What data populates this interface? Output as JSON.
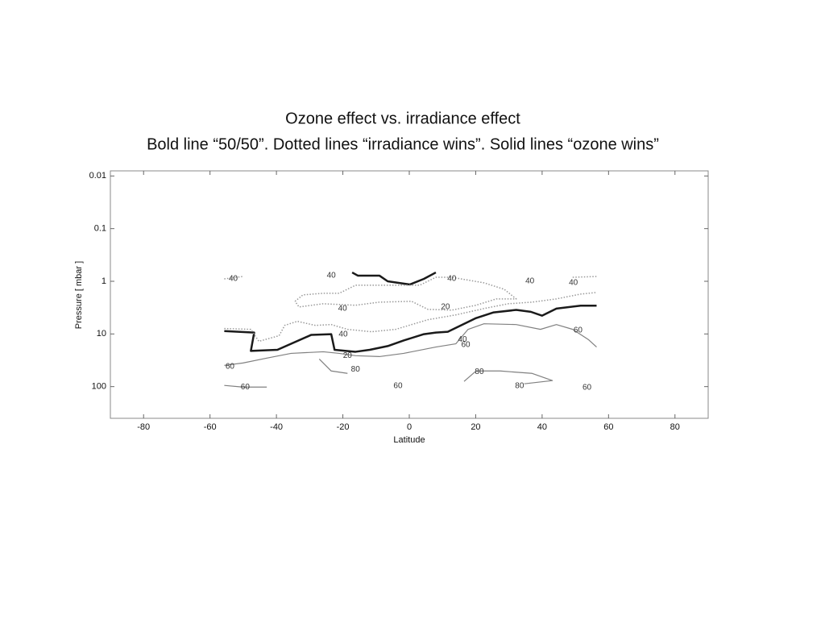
{
  "chart_data": {
    "type": "contour",
    "title": "Ozone effect vs. irradiance effect",
    "subtitle": "Bold line “50/50”.  Dotted lines “irradiance wins”.  Solid lines “ozone wins”",
    "x_label": "Latitude",
    "y_label": "Pressure [ mbar ]",
    "xlim": [
      -90,
      90
    ],
    "xticks": [
      -80,
      -60,
      -40,
      -20,
      0,
      20,
      40,
      60,
      80
    ],
    "ylim": [
      0.008,
      400
    ],
    "yticks": [
      0.01,
      0.1,
      1,
      10,
      100
    ],
    "log_y": true,
    "y_inverted": true,
    "series": [
      {
        "style": "bold",
        "color": "#1a1a1a",
        "x": [
          -55.7,
          -46.7,
          -47.7,
          -39.7,
          -29.5,
          -23.5,
          -22.5,
          -16.2,
          -11.9,
          -6.5,
          -1.7,
          4.4,
          8.0,
          11.6,
          20.1,
          25.4,
          32.2,
          36.6,
          40.0,
          44.3,
          51.6,
          56.4
        ],
        "y": [
          8.8,
          9.4,
          21,
          20,
          10.4,
          10.1,
          20,
          21.8,
          20,
          17,
          13.3,
          10.1,
          9.4,
          9.1,
          5.0,
          3.9,
          3.5,
          3.8,
          4.5,
          3.3,
          2.9,
          2.9
        ]
      },
      {
        "style": "bold",
        "color": "#1a1a1a",
        "x": [
          -17.2,
          -15.5,
          -9.0,
          -6.5,
          0.2,
          4.4,
          8.0
        ],
        "y": [
          0.68,
          0.78,
          0.78,
          1,
          1.15,
          0.9,
          0.68
        ]
      },
      {
        "style": "dotted",
        "color": "#999999",
        "x": [
          -55.7,
          -47.7,
          -45.3,
          -39.2,
          -37.5,
          -33.7,
          -28.3,
          -23.5,
          -18.6,
          -11.4,
          -4.1,
          5.6,
          14.0,
          22.5,
          29.8,
          37.0,
          44.3,
          51.6,
          56.4
        ],
        "y": [
          7.89,
          8.18,
          13.8,
          10.8,
          6.87,
          5.76,
          6.87,
          6.63,
          8.18,
          9.08,
          8.18,
          5.37,
          4.35,
          3.29,
          2.67,
          2.49,
          2.16,
          1.75,
          1.63
        ]
      },
      {
        "style": "dotted",
        "color": "#999999",
        "x": [
          -34.4,
          -32.0,
          -25.9,
          -21.1,
          -16.2,
          -6.5,
          3.1,
          8.0,
          12.8,
          22.5,
          28.6,
          32.2,
          26.2,
          20.1,
          12.8,
          5.6,
          0.7,
          -9.0,
          -16.2,
          -25.9,
          -33.2,
          -34.4
        ],
        "y": [
          2.4,
          1.81,
          1.69,
          1.69,
          1.19,
          1.19,
          1.19,
          0.84,
          0.84,
          1.07,
          1.42,
          2.16,
          2.16,
          2.85,
          3.53,
          3.41,
          2.4,
          2.49,
          2.85,
          2.67,
          3.07,
          2.4
        ]
      },
      {
        "style": "dotted",
        "color": "#999999",
        "x": [
          -55.7,
          -50.1
        ],
        "y": [
          0.9,
          0.81
        ]
      },
      {
        "style": "dotted",
        "color": "#999999",
        "x": [
          49.2,
          56.4
        ],
        "y": [
          0.84,
          0.81
        ]
      },
      {
        "style": "solid",
        "color": "#808080",
        "x": [
          -55.7,
          -50.1,
          -42.9,
          -35.6,
          -25.9,
          -21.1,
          -16.2,
          -9.0,
          -1.7,
          8.0,
          14.0,
          17.7,
          22.5,
          32.2,
          39.5,
          44.3,
          49.2,
          54.0,
          56.4
        ],
        "y": [
          39.5,
          35.6,
          28.8,
          23.4,
          21.8,
          23.4,
          25.9,
          26.9,
          23.4,
          17.7,
          15.4,
          8.18,
          6.4,
          6.63,
          8.18,
          6.63,
          8.18,
          12.9,
          17.7
        ]
      },
      {
        "style": "solid",
        "color": "#808080",
        "x": [
          -27.1,
          -23.5,
          -18.6
        ],
        "y": [
          29.9,
          50.5,
          56.1
        ]
      },
      {
        "style": "solid",
        "color": "#808080",
        "x": [
          16.5,
          20.1,
          27.4,
          37.0,
          43.1,
          34.6
        ],
        "y": [
          79.6,
          50.5,
          50.5,
          56.1,
          76.9,
          88.5
        ]
      },
      {
        "style": "solid",
        "color": "#808080",
        "x": [
          -55.7,
          -50.1,
          -42.9
        ],
        "y": [
          94.9,
          102,
          102
        ]
      }
    ],
    "annotations": [
      {
        "text": "40",
        "x": -53,
        "y": 0.9
      },
      {
        "text": "40",
        "x": -23.5,
        "y": 0.78
      },
      {
        "text": "40",
        "x": 12.8,
        "y": 0.9
      },
      {
        "text": "40",
        "x": 36.3,
        "y": 1
      },
      {
        "text": "40",
        "x": 49.4,
        "y": 1.07
      },
      {
        "text": "20",
        "x": 10.9,
        "y": 3.07
      },
      {
        "text": "40",
        "x": -20.1,
        "y": 3.29
      },
      {
        "text": "40",
        "x": -19.9,
        "y": 10.1
      },
      {
        "text": "40",
        "x": 16,
        "y": 12.9
      },
      {
        "text": "60",
        "x": 17,
        "y": 16
      },
      {
        "text": "20",
        "x": -18.6,
        "y": 25.9
      },
      {
        "text": "60",
        "x": 50.8,
        "y": 8.5
      },
      {
        "text": "60",
        "x": -54,
        "y": 42
      },
      {
        "text": "80",
        "x": -16.2,
        "y": 47
      },
      {
        "text": "60",
        "x": -3.4,
        "y": 98
      },
      {
        "text": "80",
        "x": 21.1,
        "y": 52
      },
      {
        "text": "80",
        "x": 33.2,
        "y": 98
      },
      {
        "text": "60",
        "x": 53.5,
        "y": 105
      },
      {
        "text": "60",
        "x": -49.4,
        "y": 102
      }
    ]
  }
}
